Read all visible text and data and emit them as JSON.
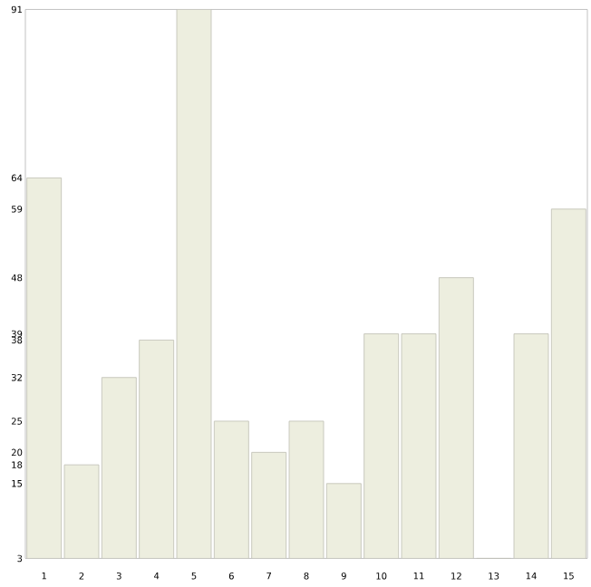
{
  "chart_data": {
    "type": "bar",
    "categories": [
      "1",
      "2",
      "3",
      "4",
      "5",
      "6",
      "7",
      "8",
      "9",
      "10",
      "11",
      "12",
      "13",
      "14",
      "15"
    ],
    "values": [
      64,
      18,
      32,
      38,
      91,
      25,
      20,
      25,
      15,
      39,
      39,
      48,
      3,
      39,
      59
    ],
    "color": "#edeedf",
    "ylim": [
      3,
      91
    ],
    "yticks": [
      3,
      15,
      18,
      20,
      25,
      32,
      38,
      39,
      48,
      59,
      64,
      91
    ],
    "grid": false
  }
}
